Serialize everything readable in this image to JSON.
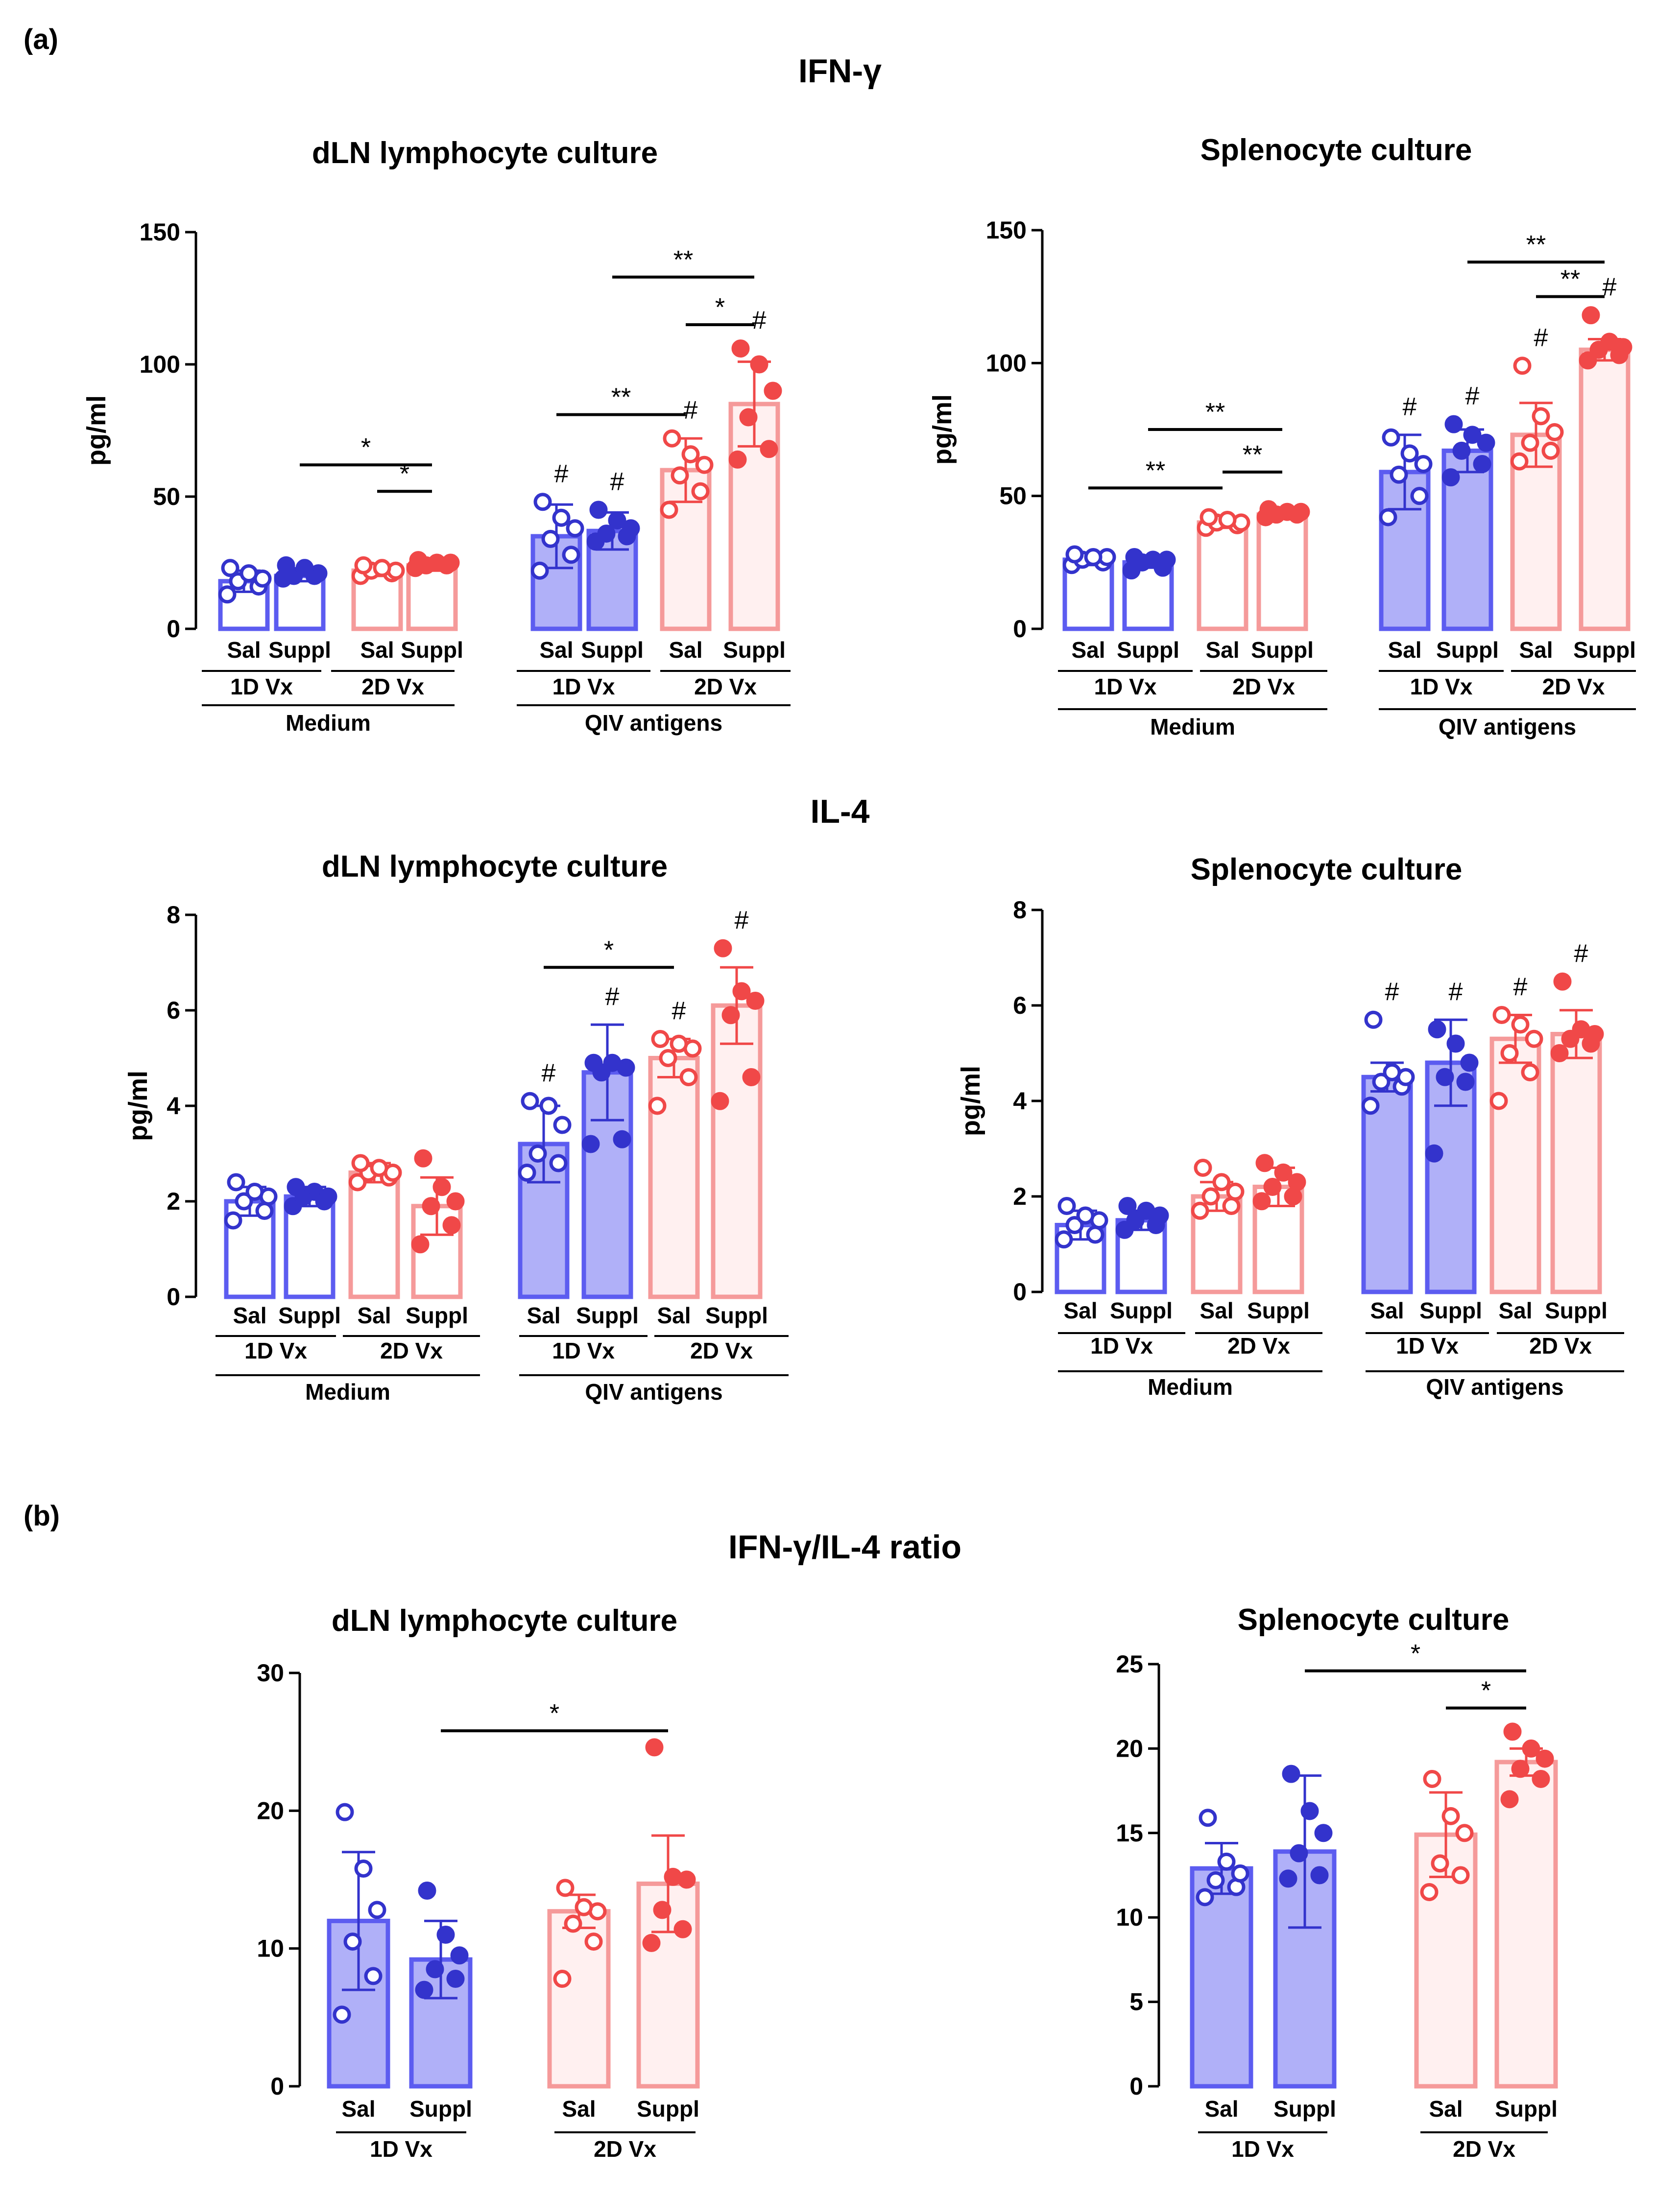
{
  "figure": {
    "panel_a": "(a)",
    "panel_b": "(b)",
    "sections": {
      "ifn": "IFN-γ",
      "il4": "IL-4",
      "ratio": "IFN-γ/IL-4 ratio"
    }
  },
  "colors": {
    "blue": "#3333cc",
    "blue_bar": "#5c5cf0",
    "blue_fill_light": "#e2e2ff",
    "blue_fill_dark": "#b0b0f8",
    "red": "#f04848",
    "red_bar": "#f59a9a",
    "red_fill_light": "#fff0f0",
    "red_fill_dark": "#fcd0d0"
  },
  "chart_data": [
    {
      "id": "ifn_dln",
      "type": "bar",
      "title": "dLN lymphocyte culture",
      "ylabel": "pg/ml",
      "ylim": [
        0,
        150
      ],
      "yticks": [
        0,
        50,
        100,
        150
      ],
      "categories": [
        "Sal",
        "Suppl",
        "Sal",
        "Suppl",
        "Sal",
        "Suppl",
        "Sal",
        "Suppl"
      ],
      "subgroups": [
        "1D Vx",
        "2D Vx",
        "1D Vx",
        "2D Vx"
      ],
      "groups": [
        "Medium",
        "QIV antigens"
      ],
      "series": [
        {
          "mean": 18,
          "sd": 4,
          "points": [
            13,
            16,
            18,
            19,
            21,
            23
          ],
          "marker": "open",
          "color": "blue",
          "fill": "none"
        },
        {
          "mean": 20,
          "sd": 2,
          "points": [
            19,
            20,
            20,
            21,
            23,
            24
          ],
          "marker": "filled",
          "color": "blue",
          "fill": "none"
        },
        {
          "mean": 22,
          "sd": 2,
          "points": [
            20,
            21,
            22,
            22,
            23,
            24
          ],
          "marker": "open",
          "color": "red",
          "fill": "none"
        },
        {
          "mean": 24,
          "sd": 2,
          "points": [
            23,
            24,
            24,
            25,
            25,
            26
          ],
          "marker": "filled",
          "color": "red",
          "fill": "none"
        },
        {
          "mean": 35,
          "sd": 12,
          "points": [
            22,
            28,
            34,
            38,
            42,
            48
          ],
          "marker": "open",
          "color": "blue",
          "fill": "dark",
          "hash": "#"
        },
        {
          "mean": 37,
          "sd": 7,
          "points": [
            33,
            35,
            36,
            38,
            41,
            45
          ],
          "marker": "filled",
          "color": "blue",
          "fill": "dark",
          "hash": "#"
        },
        {
          "mean": 60,
          "sd": 12,
          "points": [
            45,
            52,
            58,
            62,
            66,
            72
          ],
          "marker": "open",
          "color": "red",
          "fill": "light",
          "hash": "#"
        },
        {
          "mean": 85,
          "sd": 16,
          "points": [
            64,
            68,
            80,
            90,
            100,
            106
          ],
          "marker": "filled",
          "color": "red",
          "fill": "light",
          "hash": "#"
        }
      ],
      "significance": [
        {
          "from": 2,
          "to": 3,
          "y": 52,
          "label": "*"
        },
        {
          "from": 1,
          "to": 3,
          "y": 62,
          "label": "*"
        },
        {
          "from": 4,
          "to": 6,
          "y": 81,
          "label": "**"
        },
        {
          "from": 6,
          "to": 7,
          "y": 115,
          "label": "*"
        },
        {
          "from": 5,
          "to": 7,
          "y": 133,
          "label": "**"
        }
      ]
    },
    {
      "id": "ifn_spl",
      "type": "bar",
      "title": "Splenocyte culture",
      "ylabel": "pg/ml",
      "ylim": [
        0,
        150
      ],
      "yticks": [
        0,
        50,
        100,
        150
      ],
      "categories": [
        "Sal",
        "Suppl",
        "Sal",
        "Suppl",
        "Sal",
        "Suppl",
        "Sal",
        "Suppl"
      ],
      "subgroups": [
        "1D Vx",
        "2D Vx",
        "1D Vx",
        "2D Vx"
      ],
      "groups": [
        "Medium",
        "QIV antigens"
      ],
      "series": [
        {
          "mean": 26,
          "sd": 2,
          "points": [
            24,
            25,
            26,
            27,
            27,
            28
          ],
          "marker": "open",
          "color": "blue",
          "fill": "none"
        },
        {
          "mean": 25,
          "sd": 2,
          "points": [
            22,
            23,
            25,
            26,
            26,
            27
          ],
          "marker": "filled",
          "color": "blue",
          "fill": "none"
        },
        {
          "mean": 40,
          "sd": 2,
          "points": [
            38,
            39,
            40,
            40,
            41,
            42
          ],
          "marker": "open",
          "color": "red",
          "fill": "none"
        },
        {
          "mean": 43,
          "sd": 1,
          "points": [
            42,
            43,
            43,
            44,
            44,
            45
          ],
          "marker": "filled",
          "color": "red",
          "fill": "none"
        },
        {
          "mean": 59,
          "sd": 14,
          "points": [
            42,
            50,
            58,
            62,
            66,
            72
          ],
          "marker": "open",
          "color": "blue",
          "fill": "dark",
          "hash": "#"
        },
        {
          "mean": 67,
          "sd": 8,
          "points": [
            57,
            62,
            67,
            70,
            73,
            77
          ],
          "marker": "filled",
          "color": "blue",
          "fill": "dark",
          "hash": "#"
        },
        {
          "mean": 73,
          "sd": 12,
          "points": [
            63,
            67,
            70,
            74,
            80,
            99
          ],
          "marker": "open",
          "color": "red",
          "fill": "light",
          "hash": "#"
        },
        {
          "mean": 105,
          "sd": 4,
          "points": [
            101,
            103,
            105,
            106,
            108,
            118
          ],
          "marker": "filled",
          "color": "red",
          "fill": "light",
          "hash": "#"
        }
      ],
      "significance": [
        {
          "from": 0,
          "to": 2,
          "y": 53,
          "label": "**"
        },
        {
          "from": 1,
          "to": 3,
          "y": 75,
          "label": "**"
        },
        {
          "from": 2,
          "to": 3,
          "y": 59,
          "label": "**"
        },
        {
          "from": 6,
          "to": 7,
          "y": 125,
          "label": "**"
        },
        {
          "from": 5,
          "to": 7,
          "y": 138,
          "label": "**"
        }
      ]
    },
    {
      "id": "il4_dln",
      "type": "bar",
      "title": "dLN lymphocyte culture",
      "ylabel": "pg/ml",
      "ylim": [
        0,
        8
      ],
      "yticks": [
        0,
        2,
        4,
        6,
        8
      ],
      "categories": [
        "Sal",
        "Suppl",
        "Sal",
        "Suppl",
        "Sal",
        "Suppl",
        "Sal",
        "Suppl"
      ],
      "subgroups": [
        "1D Vx",
        "2D Vx",
        "1D Vx",
        "2D Vx"
      ],
      "groups": [
        "Medium",
        "QIV antigens"
      ],
      "series": [
        {
          "mean": 2.0,
          "sd": 0.3,
          "points": [
            1.6,
            1.8,
            2.0,
            2.1,
            2.2,
            2.4
          ],
          "marker": "open",
          "color": "blue",
          "fill": "none"
        },
        {
          "mean": 2.1,
          "sd": 0.2,
          "points": [
            1.9,
            2.0,
            2.1,
            2.1,
            2.2,
            2.3
          ],
          "marker": "filled",
          "color": "blue",
          "fill": "none"
        },
        {
          "mean": 2.6,
          "sd": 0.2,
          "points": [
            2.4,
            2.5,
            2.6,
            2.6,
            2.7,
            2.8
          ],
          "marker": "open",
          "color": "red",
          "fill": "none"
        },
        {
          "mean": 1.9,
          "sd": 0.6,
          "points": [
            1.1,
            1.5,
            1.9,
            2.0,
            2.3,
            2.9
          ],
          "marker": "filled",
          "color": "red",
          "fill": "none"
        },
        {
          "mean": 3.2,
          "sd": 0.8,
          "points": [
            2.6,
            2.8,
            3.0,
            3.6,
            4.0,
            4.1
          ],
          "marker": "open",
          "color": "blue",
          "fill": "dark",
          "hash": "#"
        },
        {
          "mean": 4.7,
          "sd": 1.0,
          "points": [
            3.2,
            3.3,
            4.7,
            4.8,
            4.9,
            4.9
          ],
          "marker": "filled",
          "color": "blue",
          "fill": "dark",
          "hash": "#"
        },
        {
          "mean": 5.0,
          "sd": 0.4,
          "points": [
            4.0,
            4.6,
            5.0,
            5.2,
            5.3,
            5.4
          ],
          "marker": "open",
          "color": "red",
          "fill": "light",
          "hash": "#"
        },
        {
          "mean": 6.1,
          "sd": 0.8,
          "points": [
            4.1,
            4.6,
            5.9,
            6.2,
            6.4,
            7.3
          ],
          "marker": "filled",
          "color": "red",
          "fill": "light",
          "hash": "#"
        }
      ],
      "significance": [
        {
          "from": 4,
          "to": 6,
          "y": 6.9,
          "label": "*"
        }
      ]
    },
    {
      "id": "il4_spl",
      "type": "bar",
      "title": "Splenocyte culture",
      "ylabel": "pg/ml",
      "ylim": [
        0,
        8
      ],
      "yticks": [
        0,
        2,
        4,
        6,
        8
      ],
      "categories": [
        "Sal",
        "Suppl",
        "Sal",
        "Suppl",
        "Sal",
        "Suppl",
        "Sal",
        "Suppl"
      ],
      "subgroups": [
        "1D Vx",
        "2D Vx",
        "1D Vx",
        "2D Vx"
      ],
      "groups": [
        "Medium",
        "QIV antigens"
      ],
      "series": [
        {
          "mean": 1.4,
          "sd": 0.3,
          "points": [
            1.1,
            1.2,
            1.4,
            1.5,
            1.6,
            1.8
          ],
          "marker": "open",
          "color": "blue",
          "fill": "none"
        },
        {
          "mean": 1.5,
          "sd": 0.2,
          "points": [
            1.3,
            1.4,
            1.5,
            1.6,
            1.7,
            1.8
          ],
          "marker": "filled",
          "color": "blue",
          "fill": "none"
        },
        {
          "mean": 2.0,
          "sd": 0.3,
          "points": [
            1.7,
            1.8,
            2.0,
            2.1,
            2.3,
            2.6
          ],
          "marker": "open",
          "color": "red",
          "fill": "none"
        },
        {
          "mean": 2.2,
          "sd": 0.4,
          "points": [
            1.9,
            2.0,
            2.2,
            2.3,
            2.5,
            2.7
          ],
          "marker": "filled",
          "color": "red",
          "fill": "none"
        },
        {
          "mean": 4.5,
          "sd": 0.3,
          "points": [
            3.9,
            4.3,
            4.4,
            4.5,
            4.6,
            5.7
          ],
          "marker": "open",
          "color": "blue",
          "fill": "dark",
          "hash": "#"
        },
        {
          "mean": 4.8,
          "sd": 0.9,
          "points": [
            2.9,
            4.4,
            4.5,
            4.8,
            5.2,
            5.5
          ],
          "marker": "filled",
          "color": "blue",
          "fill": "dark",
          "hash": "#"
        },
        {
          "mean": 5.3,
          "sd": 0.5,
          "points": [
            4.0,
            4.6,
            5.0,
            5.3,
            5.6,
            5.8
          ],
          "marker": "open",
          "color": "red",
          "fill": "light",
          "hash": "#"
        },
        {
          "mean": 5.4,
          "sd": 0.5,
          "points": [
            5.0,
            5.2,
            5.3,
            5.4,
            5.5,
            6.5
          ],
          "marker": "filled",
          "color": "red",
          "fill": "light",
          "hash": "#"
        }
      ],
      "significance": []
    },
    {
      "id": "ratio_dln",
      "type": "bar",
      "title": "dLN lymphocyte culture",
      "ylabel": "",
      "ylim": [
        0,
        30
      ],
      "yticks": [
        0,
        10,
        20,
        30
      ],
      "categories": [
        "Sal",
        "Suppl",
        "Sal",
        "Suppl"
      ],
      "subgroups": [
        "1D Vx",
        "2D Vx"
      ],
      "groups": [],
      "series": [
        {
          "mean": 12,
          "sd": 5,
          "points": [
            5.2,
            8.0,
            10.5,
            12.8,
            15.8,
            19.9
          ],
          "marker": "open",
          "color": "blue",
          "fill": "dark"
        },
        {
          "mean": 9.2,
          "sd": 2.8,
          "points": [
            7.0,
            7.8,
            8.5,
            9.5,
            11.0,
            14.2
          ],
          "marker": "filled",
          "color": "blue",
          "fill": "dark"
        },
        {
          "mean": 12.7,
          "sd": 1.2,
          "points": [
            7.8,
            10.5,
            11.8,
            12.7,
            13.0,
            14.4
          ],
          "marker": "open",
          "color": "red",
          "fill": "light"
        },
        {
          "mean": 14.7,
          "sd": 3.5,
          "points": [
            10.4,
            11.4,
            12.8,
            15.0,
            15.2,
            24.6
          ],
          "marker": "filled",
          "color": "red",
          "fill": "light"
        }
      ],
      "significance": [
        {
          "from": 1,
          "to": 3,
          "y": 25.8,
          "label": "*"
        }
      ]
    },
    {
      "id": "ratio_spl",
      "type": "bar",
      "title": "Splenocyte culture",
      "ylabel": "",
      "ylim": [
        0,
        25
      ],
      "yticks": [
        0,
        5,
        10,
        15,
        20,
        25
      ],
      "categories": [
        "Sal",
        "Suppl",
        "Sal",
        "Suppl"
      ],
      "subgroups": [
        "1D Vx",
        "2D Vx"
      ],
      "groups": [],
      "series": [
        {
          "mean": 12.9,
          "sd": 1.5,
          "points": [
            11.2,
            11.8,
            12.2,
            12.6,
            13.3,
            15.9
          ],
          "marker": "open",
          "color": "blue",
          "fill": "dark"
        },
        {
          "mean": 13.9,
          "sd": 4.5,
          "points": [
            12.3,
            12.5,
            13.8,
            15.0,
            16.3,
            18.5
          ],
          "marker": "filled",
          "color": "blue",
          "fill": "dark"
        },
        {
          "mean": 14.9,
          "sd": 2.5,
          "points": [
            11.5,
            12.5,
            13.2,
            15.0,
            16.0,
            18.2
          ],
          "marker": "open",
          "color": "red",
          "fill": "light"
        },
        {
          "mean": 19.2,
          "sd": 0.8,
          "points": [
            17.0,
            18.2,
            18.8,
            19.4,
            20.0,
            21.0
          ],
          "marker": "filled",
          "color": "red",
          "fill": "light"
        }
      ],
      "significance": [
        {
          "from": 1,
          "to": 3,
          "y": 24.6,
          "label": "*"
        },
        {
          "from": 2,
          "to": 3,
          "y": 22.4,
          "label": "*"
        }
      ]
    }
  ]
}
